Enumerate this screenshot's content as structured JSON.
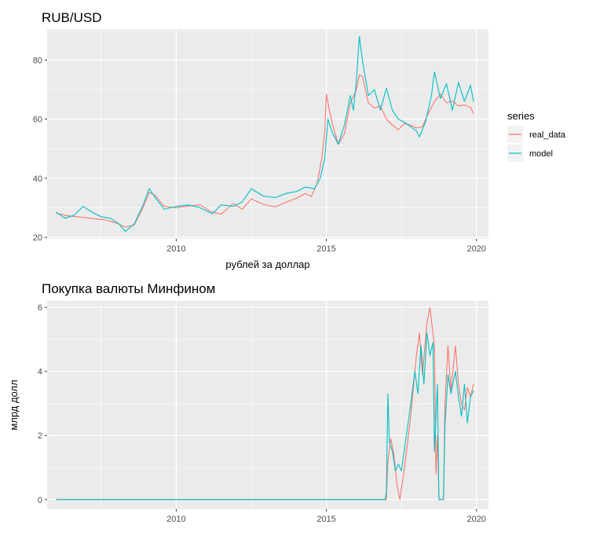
{
  "chart_data": [
    {
      "type": "line",
      "title": "RUB/USD",
      "xlabel": "рублей за доллар",
      "ylabel": "",
      "xlim": [
        2005.7,
        2020.4
      ],
      "ylim": [
        19.5,
        90.5
      ],
      "xticks": [
        2010,
        2015,
        2020
      ],
      "yticks": [
        20,
        40,
        60,
        80
      ],
      "xticklabels": [
        "2010",
        "2015",
        "2020"
      ],
      "yticklabels": [
        "20",
        "40",
        "60",
        "80"
      ],
      "grid": true,
      "legend": {
        "title": "series",
        "position": "right"
      },
      "series": [
        {
          "name": "real_data",
          "color": "#F8766D",
          "points": [
            [
              2006.0,
              28.2
            ],
            [
              2006.4,
              27.3
            ],
            [
              2006.8,
              26.9
            ],
            [
              2007.2,
              26.4
            ],
            [
              2007.6,
              26.0
            ],
            [
              2008.0,
              24.9
            ],
            [
              2008.3,
              23.5
            ],
            [
              2008.6,
              24.2
            ],
            [
              2008.9,
              30.2
            ],
            [
              2009.1,
              35.2
            ],
            [
              2009.3,
              34.2
            ],
            [
              2009.6,
              30.5
            ],
            [
              2010.0,
              30.0
            ],
            [
              2010.4,
              30.6
            ],
            [
              2010.8,
              31.0
            ],
            [
              2011.2,
              28.5
            ],
            [
              2011.5,
              27.9
            ],
            [
              2011.9,
              31.5
            ],
            [
              2012.2,
              29.5
            ],
            [
              2012.5,
              33.0
            ],
            [
              2012.9,
              31.2
            ],
            [
              2013.3,
              30.3
            ],
            [
              2013.7,
              32.1
            ],
            [
              2014.0,
              33.2
            ],
            [
              2014.3,
              34.9
            ],
            [
              2014.5,
              33.8
            ],
            [
              2014.7,
              38.5
            ],
            [
              2014.85,
              47.0
            ],
            [
              2014.95,
              56.0
            ],
            [
              2015.0,
              68.5
            ],
            [
              2015.1,
              63.0
            ],
            [
              2015.2,
              58.5
            ],
            [
              2015.4,
              51.5
            ],
            [
              2015.6,
              55.0
            ],
            [
              2015.8,
              65.5
            ],
            [
              2016.0,
              70.0
            ],
            [
              2016.1,
              75.0
            ],
            [
              2016.2,
              74.5
            ],
            [
              2016.4,
              65.5
            ],
            [
              2016.6,
              63.8
            ],
            [
              2016.8,
              64.5
            ],
            [
              2017.0,
              60.0
            ],
            [
              2017.2,
              58.0
            ],
            [
              2017.4,
              56.5
            ],
            [
              2017.6,
              58.5
            ],
            [
              2017.8,
              58.0
            ],
            [
              2018.0,
              57.0
            ],
            [
              2018.2,
              57.5
            ],
            [
              2018.4,
              62.0
            ],
            [
              2018.6,
              66.0
            ],
            [
              2018.8,
              68.5
            ],
            [
              2019.0,
              65.5
            ],
            [
              2019.2,
              66.2
            ],
            [
              2019.4,
              64.5
            ],
            [
              2019.6,
              64.8
            ],
            [
              2019.8,
              64.0
            ],
            [
              2019.9,
              62.0
            ]
          ]
        },
        {
          "name": "model",
          "color": "#00BFC4",
          "points": [
            [
              2006.0,
              28.5
            ],
            [
              2006.3,
              26.5
            ],
            [
              2006.6,
              27.5
            ],
            [
              2006.9,
              30.5
            ],
            [
              2007.2,
              28.5
            ],
            [
              2007.5,
              27.0
            ],
            [
              2007.8,
              26.5
            ],
            [
              2008.1,
              24.5
            ],
            [
              2008.3,
              22.0
            ],
            [
              2008.6,
              24.5
            ],
            [
              2008.9,
              31.0
            ],
            [
              2009.1,
              36.5
            ],
            [
              2009.3,
              33.5
            ],
            [
              2009.6,
              29.5
            ],
            [
              2010.0,
              30.5
            ],
            [
              2010.4,
              31.0
            ],
            [
              2010.8,
              30.0
            ],
            [
              2011.2,
              28.0
            ],
            [
              2011.5,
              31.0
            ],
            [
              2011.9,
              30.5
            ],
            [
              2012.2,
              32.0
            ],
            [
              2012.5,
              36.5
            ],
            [
              2012.9,
              34.0
            ],
            [
              2013.3,
              33.5
            ],
            [
              2013.7,
              35.0
            ],
            [
              2014.0,
              35.5
            ],
            [
              2014.3,
              37.0
            ],
            [
              2014.6,
              36.5
            ],
            [
              2014.8,
              40.0
            ],
            [
              2014.95,
              47.0
            ],
            [
              2015.05,
              60.0
            ],
            [
              2015.2,
              55.5
            ],
            [
              2015.4,
              51.5
            ],
            [
              2015.6,
              58.0
            ],
            [
              2015.8,
              68.0
            ],
            [
              2015.9,
              63.0
            ],
            [
              2016.0,
              73.0
            ],
            [
              2016.1,
              88.0
            ],
            [
              2016.2,
              80.0
            ],
            [
              2016.4,
              68.0
            ],
            [
              2016.6,
              70.0
            ],
            [
              2016.8,
              63.0
            ],
            [
              2017.0,
              70.5
            ],
            [
              2017.2,
              63.0
            ],
            [
              2017.4,
              60.0
            ],
            [
              2017.6,
              59.0
            ],
            [
              2017.8,
              57.5
            ],
            [
              2018.0,
              56.0
            ],
            [
              2018.1,
              54.0
            ],
            [
              2018.3,
              59.0
            ],
            [
              2018.5,
              68.0
            ],
            [
              2018.6,
              76.0
            ],
            [
              2018.8,
              67.0
            ],
            [
              2019.0,
              72.0
            ],
            [
              2019.2,
              63.0
            ],
            [
              2019.4,
              72.5
            ],
            [
              2019.6,
              66.0
            ],
            [
              2019.8,
              71.5
            ],
            [
              2019.9,
              66.0
            ]
          ]
        }
      ]
    },
    {
      "type": "line",
      "title": "Покупка валюты Минфином",
      "xlabel": "",
      "ylabel": "млрд долл",
      "xlim": [
        2005.7,
        2020.4
      ],
      "ylim": [
        -0.3,
        6.2
      ],
      "xticks": [
        2010,
        2015,
        2020
      ],
      "yticks": [
        0,
        2,
        4,
        6
      ],
      "xticklabels": [
        "2010",
        "2015",
        "2020"
      ],
      "yticklabels": [
        "0",
        "2",
        "4",
        "6"
      ],
      "grid": true,
      "series": [
        {
          "name": "real_data",
          "color": "#F8766D",
          "points": [
            [
              2006.0,
              0
            ],
            [
              2017.0,
              0
            ],
            [
              2017.05,
              1.2
            ],
            [
              2017.15,
              1.9
            ],
            [
              2017.25,
              1.4
            ],
            [
              2017.35,
              0.5
            ],
            [
              2017.45,
              0.0
            ],
            [
              2017.6,
              1.0
            ],
            [
              2017.8,
              2.5
            ],
            [
              2018.0,
              4.5
            ],
            [
              2018.1,
              5.2
            ],
            [
              2018.2,
              3.9
            ],
            [
              2018.35,
              5.5
            ],
            [
              2018.45,
              6.0
            ],
            [
              2018.55,
              5.2
            ],
            [
              2018.6,
              4.8
            ],
            [
              2018.65,
              0.8
            ],
            [
              2018.7,
              2.0
            ],
            [
              2018.75,
              0.0
            ],
            [
              2018.9,
              0.0
            ],
            [
              2018.95,
              3.0
            ],
            [
              2019.05,
              4.8
            ],
            [
              2019.15,
              3.4
            ],
            [
              2019.3,
              4.8
            ],
            [
              2019.4,
              3.6
            ],
            [
              2019.5,
              3.0
            ],
            [
              2019.6,
              2.8
            ],
            [
              2019.7,
              3.5
            ],
            [
              2019.8,
              3.2
            ],
            [
              2019.9,
              3.6
            ]
          ]
        },
        {
          "name": "model",
          "color": "#00BFC4",
          "points": [
            [
              2006.0,
              0
            ],
            [
              2016.95,
              0
            ],
            [
              2017.0,
              0.2
            ],
            [
              2017.05,
              3.3
            ],
            [
              2017.1,
              1.8
            ],
            [
              2017.2,
              1.5
            ],
            [
              2017.3,
              0.9
            ],
            [
              2017.4,
              1.1
            ],
            [
              2017.5,
              0.9
            ],
            [
              2017.65,
              1.9
            ],
            [
              2017.8,
              2.9
            ],
            [
              2017.95,
              4.0
            ],
            [
              2018.05,
              3.3
            ],
            [
              2018.15,
              4.8
            ],
            [
              2018.25,
              3.6
            ],
            [
              2018.35,
              5.2
            ],
            [
              2018.45,
              4.5
            ],
            [
              2018.55,
              4.9
            ],
            [
              2018.6,
              1.5
            ],
            [
              2018.7,
              3.6
            ],
            [
              2018.75,
              0.0
            ],
            [
              2018.9,
              0.0
            ],
            [
              2018.95,
              2.3
            ],
            [
              2019.05,
              3.9
            ],
            [
              2019.15,
              3.3
            ],
            [
              2019.3,
              4.0
            ],
            [
              2019.4,
              3.2
            ],
            [
              2019.5,
              2.6
            ],
            [
              2019.6,
              3.6
            ],
            [
              2019.7,
              2.4
            ],
            [
              2019.8,
              3.2
            ],
            [
              2019.9,
              3.4
            ]
          ]
        }
      ]
    }
  ]
}
